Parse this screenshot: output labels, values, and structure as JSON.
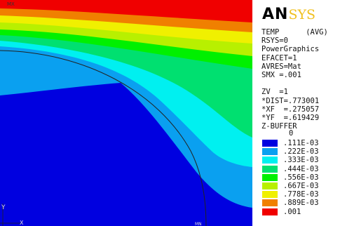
{
  "plot": {
    "corner_label": "MX",
    "axis_y": "Y",
    "axis_x": "X",
    "bottom_mark": "MN"
  },
  "panel": {
    "logo_main": "ANSYS",
    "info_lines": [
      "TEMP      (AVG)",
      "RSYS=0",
      "PowerGraphics",
      "EFACET=1",
      "AVRES=Mat",
      "SMX =.001",
      "",
      "ZV  =1",
      "*DIST=.773001",
      "*XF  =.275057",
      "*YF  =.619429",
      "Z-BUFFER"
    ],
    "legend_top": "0",
    "legend": [
      {
        "label": ".111E-03",
        "color": "#0000e0"
      },
      {
        "label": ".222E-03",
        "color": "#0aa0f0"
      },
      {
        "label": ".333E-03",
        "color": "#00f0f0"
      },
      {
        "label": ".444E-03",
        "color": "#00e070"
      },
      {
        "label": ".556E-03",
        "color": "#00f000"
      },
      {
        "label": ".667E-03",
        "color": "#b8f000"
      },
      {
        "label": ".778E-03",
        "color": "#f0f000"
      },
      {
        "label": ".889E-03",
        "color": "#f08000"
      },
      {
        "label": ".001",
        "color": "#f00000"
      }
    ]
  }
}
